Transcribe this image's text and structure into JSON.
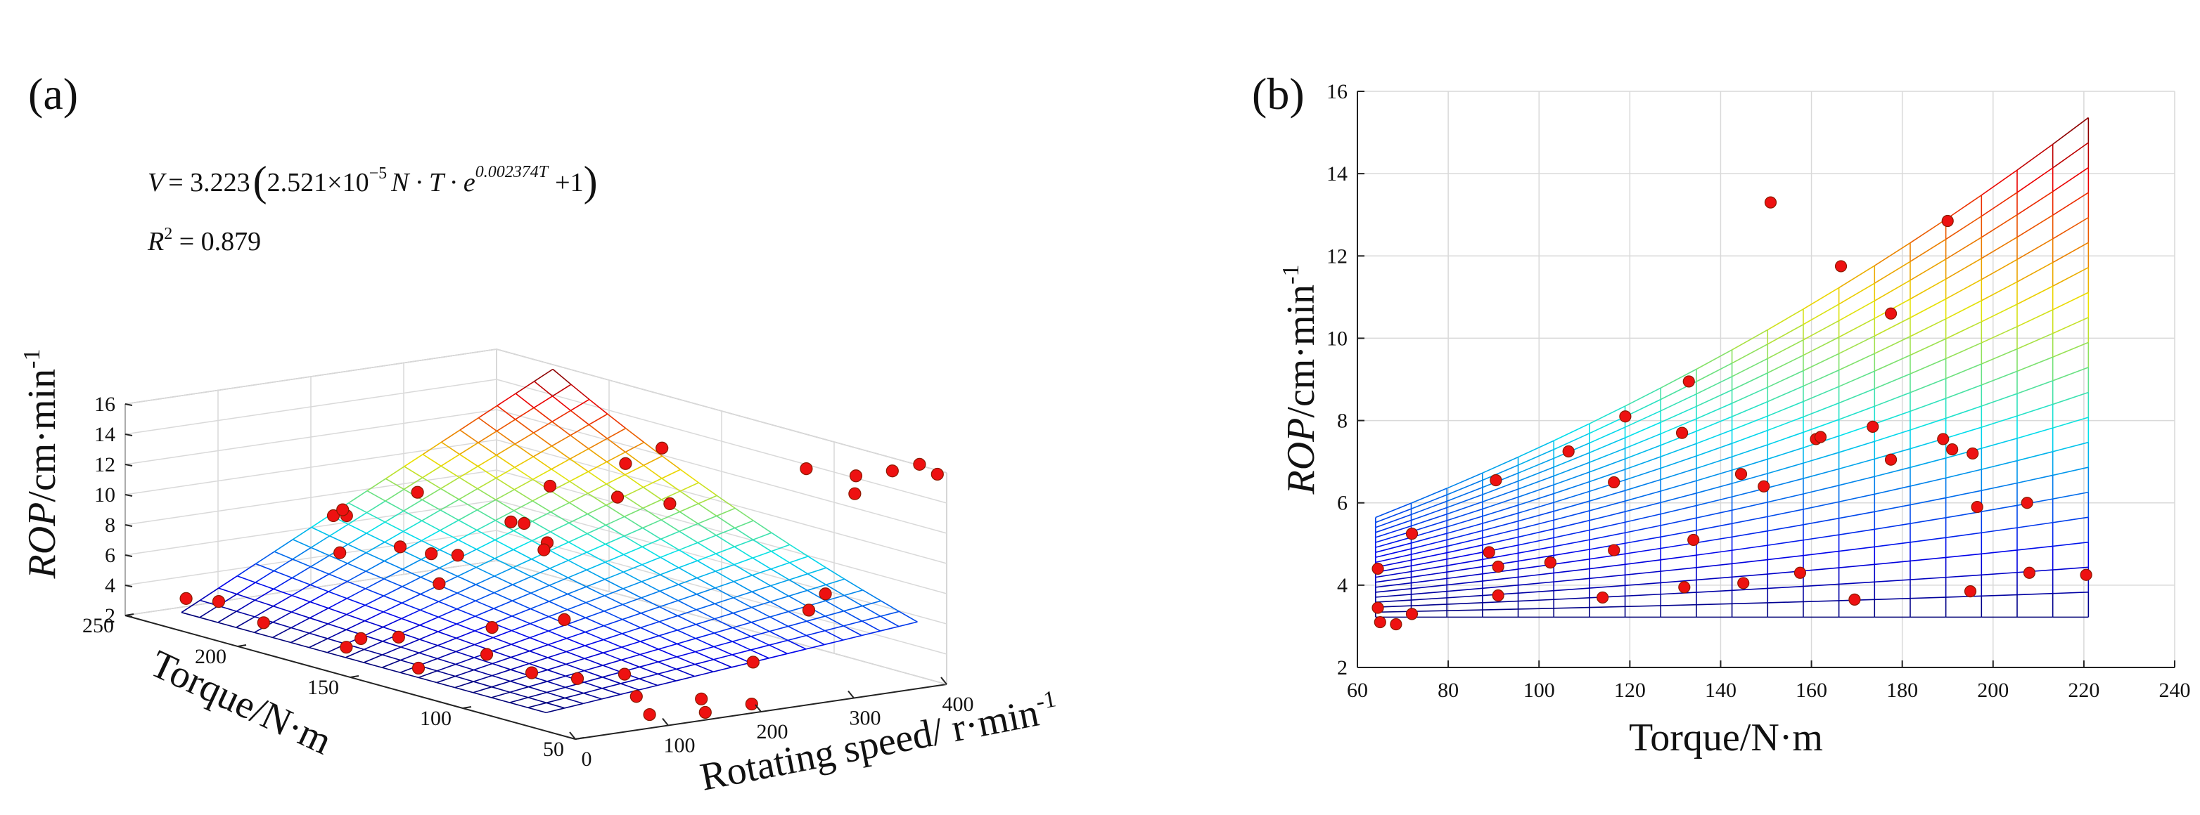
{
  "chart_data": [
    {
      "panel": "(a)",
      "type": "surface3d",
      "equation_text": {
        "lhs": "V",
        "coef": "= 3.223",
        "mantissa": "2.521×10",
        "exponent": "−5",
        "vars": "N · T · e",
        "e_power": "0.002374T",
        "plus": "+1"
      },
      "r2_text": {
        "label": "R",
        "sup": "2",
        "value": " = 0.879"
      },
      "zlabel": {
        "italic": "ROP",
        "rest": "/cm·min",
        "sup": "-1"
      },
      "xlabel": {
        "text": "Rotating speed/ r·min",
        "sup": "-1"
      },
      "ylabel": "Torque/N·m",
      "x_ticks": [
        0,
        100,
        200,
        300,
        400
      ],
      "y_ticks": [
        50,
        100,
        150,
        200,
        250
      ],
      "z_ticks": [
        2,
        4,
        6,
        8,
        10,
        12,
        14,
        16
      ],
      "xlim": [
        0,
        400
      ],
      "ylim": [
        50,
        250
      ],
      "zlim": [
        2,
        16
      ],
      "surface_range": {
        "N": [
          0,
          400
        ],
        "T": [
          63,
          225
        ]
      },
      "colormap": "jet",
      "points": [
        [
          5,
          225,
          4.1
        ],
        [
          28,
          220,
          3.9
        ],
        [
          40,
          205,
          3.0
        ],
        [
          20,
          160,
          3.4
        ],
        [
          40,
          145,
          4.5
        ],
        [
          25,
          130,
          3.2
        ],
        [
          60,
          170,
          3.2
        ],
        [
          50,
          110,
          4.7
        ],
        [
          50,
          90,
          4.3
        ],
        [
          80,
          120,
          5.8
        ],
        [
          75,
          80,
          4.1
        ],
        [
          90,
          60,
          3.6
        ],
        [
          150,
          90,
          3.3
        ],
        [
          120,
          160,
          6.7
        ],
        [
          110,
          200,
          7.2
        ],
        [
          160,
          60,
          2.8
        ],
        [
          140,
          160,
          8.4
        ],
        [
          160,
          180,
          7.5
        ],
        [
          170,
          125,
          5.3
        ],
        [
          200,
          145,
          9.3
        ],
        [
          175,
          200,
          7.0
        ],
        [
          190,
          230,
          7.7
        ],
        [
          200,
          240,
          7.2
        ],
        [
          210,
          240,
          7.5
        ],
        [
          230,
          215,
          9.5
        ],
        [
          245,
          165,
          7.6
        ],
        [
          260,
          180,
          8.6
        ],
        [
          270,
          190,
          8.2
        ],
        [
          300,
          185,
          10.5
        ],
        [
          300,
          155,
          11.0
        ],
        [
          320,
          140,
          11.0
        ],
        [
          345,
          170,
          12.2
        ],
        [
          360,
          160,
          13.5
        ],
        [
          370,
          100,
          14.5
        ],
        [
          375,
          80,
          14.8
        ],
        [
          390,
          70,
          15.4
        ],
        [
          390,
          50,
          16.0
        ],
        [
          395,
          60,
          16.2
        ],
        [
          398,
          90,
          13.0
        ],
        [
          330,
          75,
          7.6
        ],
        [
          300,
          70,
          7.0
        ],
        [
          240,
          70,
          4.1
        ],
        [
          190,
          50,
          2.6
        ],
        [
          80,
          50,
          2.9
        ],
        [
          140,
          50,
          2.5
        ]
      ]
    },
    {
      "panel": "(b)",
      "type": "scatter_with_mesh",
      "xlabel": "Torque/N·m",
      "ylabel": {
        "italic": "ROP",
        "rest": "/cm·min",
        "sup": "-1"
      },
      "xlim": [
        60,
        240
      ],
      "ylim": [
        2,
        16
      ],
      "x_ticks": [
        60,
        80,
        100,
        120,
        140,
        160,
        180,
        200,
        220,
        240
      ],
      "y_ticks": [
        2,
        4,
        6,
        8,
        10,
        12,
        14,
        16
      ],
      "grid": true,
      "mesh_range": {
        "T": [
          64,
          221
        ],
        "N": [
          0,
          400
        ]
      },
      "colormap": "jet",
      "points": [
        [
          64.5,
          4.4
        ],
        [
          64.5,
          3.45
        ],
        [
          65,
          3.1
        ],
        [
          68.5,
          3.05
        ],
        [
          72,
          5.25
        ],
        [
          72,
          3.3
        ],
        [
          89,
          4.8
        ],
        [
          90.5,
          6.55
        ],
        [
          91,
          4.45
        ],
        [
          91,
          3.75
        ],
        [
          102.5,
          4.55
        ],
        [
          106.5,
          7.25
        ],
        [
          114,
          3.7
        ],
        [
          116.5,
          6.5
        ],
        [
          116.5,
          4.85
        ],
        [
          119,
          8.1
        ],
        [
          131.5,
          7.7
        ],
        [
          132,
          3.95
        ],
        [
          133,
          8.95
        ],
        [
          134,
          5.1
        ],
        [
          144.5,
          6.7
        ],
        [
          145,
          4.05
        ],
        [
          149.5,
          6.4
        ],
        [
          151,
          13.3
        ],
        [
          157.5,
          4.3
        ],
        [
          161,
          7.55
        ],
        [
          162,
          7.6
        ],
        [
          166.5,
          11.75
        ],
        [
          169.5,
          3.65
        ],
        [
          173.5,
          7.85
        ],
        [
          177.5,
          7.05
        ],
        [
          177.5,
          10.6
        ],
        [
          189,
          7.55
        ],
        [
          190,
          12.85
        ],
        [
          191,
          7.3
        ],
        [
          195,
          3.85
        ],
        [
          195.5,
          7.2
        ],
        [
          196.5,
          5.9
        ],
        [
          207.5,
          6.0
        ],
        [
          208,
          4.3
        ],
        [
          220.5,
          4.25
        ]
      ]
    }
  ]
}
